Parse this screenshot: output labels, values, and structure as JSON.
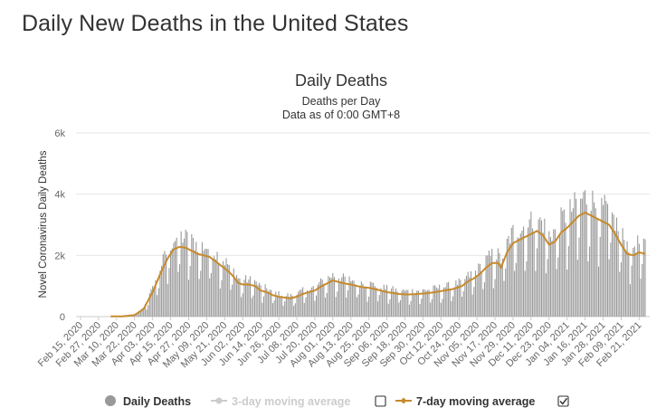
{
  "page": {
    "title": "Daily New Deaths in the United States"
  },
  "legend": {
    "daily": "Daily Deaths",
    "avg3": "3-day moving average",
    "avg7": "7-day moving average",
    "avg3_checked": false,
    "avg7_checked": true
  },
  "colors": {
    "bars": "#999999",
    "line7": "#c78a2b",
    "line3": "#cccccc",
    "grid": "#e6e6e6"
  },
  "chart_data": {
    "type": "bar",
    "title": "Daily Deaths",
    "subtitle": "Deaths per Day",
    "subtitle2": "Data as of 0:00 GMT+8",
    "ylabel": "Novel Coronavirus Daily Deaths",
    "ylim": [
      0,
      6000
    ],
    "yticks": [
      0,
      2000,
      4000,
      6000
    ],
    "ytick_labels": [
      "0",
      "2k",
      "4k",
      "6k"
    ],
    "start_date": "2020-02-15",
    "end_date": "2021-02-25",
    "xtick_labels": [
      "Feb 15, 2020",
      "Feb 27, 2020",
      "Mar 10, 2020",
      "Mar 22, 2020",
      "Apr 03, 2020",
      "Apr 15, 2020",
      "Apr 27, 2020",
      "May 09, 2020",
      "May 21, 2020",
      "Jun 02, 2020",
      "Jun 14, 2020",
      "Jun 26, 2020",
      "Jul 08, 2020",
      "Jul 20, 2020",
      "Aug 01, 2020",
      "Aug 13, 2020",
      "Aug 25, 2020",
      "Sep 06, 2020",
      "Sep 18, 2020",
      "Sep 30, 2020",
      "Oct 12, 2020",
      "Oct 24, 2020",
      "Nov 05, 2020",
      "Nov 17, 2020",
      "Nov 29, 2020",
      "Dec 11, 2020",
      "Dec 23, 2020",
      "Jan 04, 2021",
      "Jan 16, 2021",
      "Jan 28, 2021",
      "Feb 09, 2021",
      "Feb 21, 2021"
    ],
    "series": [
      {
        "name": "7-day moving average",
        "anchors_day_value": [
          [
            0,
            0
          ],
          [
            28,
            10
          ],
          [
            36,
            50
          ],
          [
            42,
            250
          ],
          [
            48,
            800
          ],
          [
            54,
            1500
          ],
          [
            58,
            1900
          ],
          [
            62,
            2200
          ],
          [
            66,
            2280
          ],
          [
            70,
            2250
          ],
          [
            74,
            2150
          ],
          [
            78,
            2050
          ],
          [
            82,
            2000
          ],
          [
            86,
            1950
          ],
          [
            90,
            1800
          ],
          [
            94,
            1650
          ],
          [
            98,
            1500
          ],
          [
            102,
            1300
          ],
          [
            105,
            1100
          ],
          [
            108,
            1050
          ],
          [
            112,
            1050
          ],
          [
            116,
            1000
          ],
          [
            120,
            850
          ],
          [
            124,
            800
          ],
          [
            128,
            700
          ],
          [
            132,
            650
          ],
          [
            136,
            620
          ],
          [
            140,
            600
          ],
          [
            144,
            650
          ],
          [
            148,
            740
          ],
          [
            152,
            800
          ],
          [
            156,
            850
          ],
          [
            160,
            980
          ],
          [
            164,
            1080
          ],
          [
            168,
            1180
          ],
          [
            172,
            1130
          ],
          [
            176,
            1080
          ],
          [
            180,
            1050
          ],
          [
            184,
            1000
          ],
          [
            188,
            960
          ],
          [
            192,
            940
          ],
          [
            196,
            900
          ],
          [
            200,
            850
          ],
          [
            204,
            800
          ],
          [
            208,
            770
          ],
          [
            212,
            740
          ],
          [
            218,
            720
          ],
          [
            224,
            740
          ],
          [
            230,
            760
          ],
          [
            236,
            800
          ],
          [
            242,
            850
          ],
          [
            248,
            900
          ],
          [
            254,
            1000
          ],
          [
            258,
            1150
          ],
          [
            262,
            1250
          ],
          [
            266,
            1400
          ],
          [
            270,
            1600
          ],
          [
            274,
            1750
          ],
          [
            278,
            1750
          ],
          [
            280,
            1600
          ],
          [
            284,
            2100
          ],
          [
            288,
            2400
          ],
          [
            292,
            2500
          ],
          [
            296,
            2600
          ],
          [
            300,
            2700
          ],
          [
            304,
            2800
          ],
          [
            308,
            2650
          ],
          [
            312,
            2350
          ],
          [
            316,
            2450
          ],
          [
            320,
            2750
          ],
          [
            324,
            2900
          ],
          [
            328,
            3100
          ],
          [
            332,
            3300
          ],
          [
            336,
            3400
          ],
          [
            340,
            3300
          ],
          [
            344,
            3200
          ],
          [
            348,
            3100
          ],
          [
            352,
            3000
          ],
          [
            356,
            2700
          ],
          [
            360,
            2350
          ],
          [
            364,
            2050
          ],
          [
            368,
            2000
          ],
          [
            372,
            2100
          ],
          [
            376,
            2050
          ]
        ]
      },
      {
        "name": "Daily Deaths",
        "note": "daily bars scattered around the 7-day average with weekly reporting dips; peaks near 4,450 in mid-January 2021",
        "peak": 4450
      }
    ]
  }
}
